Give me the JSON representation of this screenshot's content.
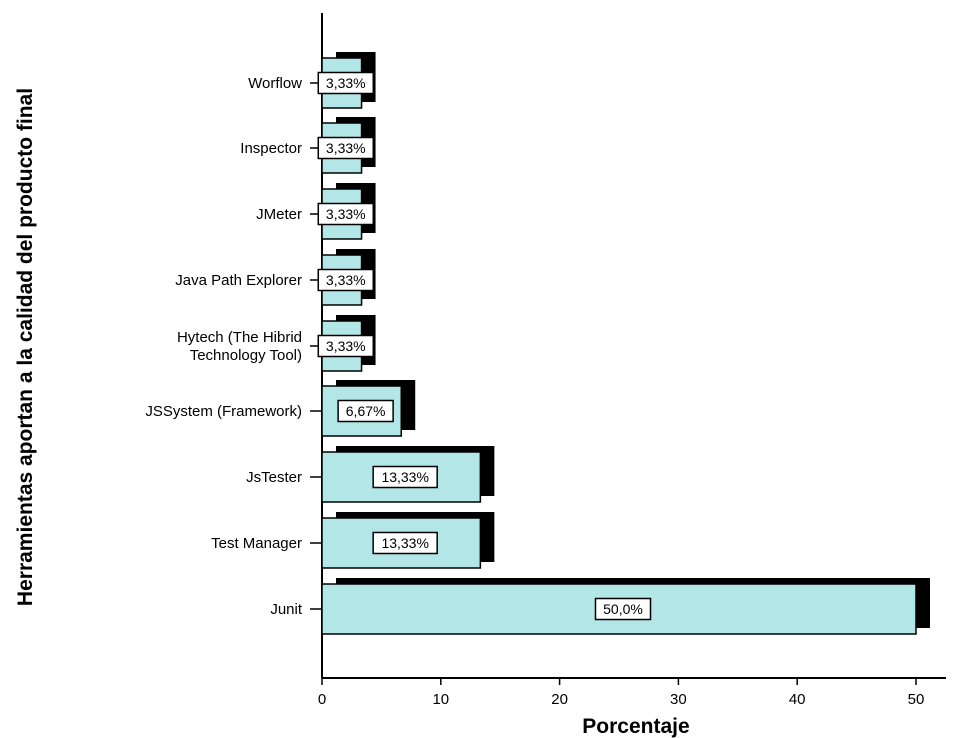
{
  "chart_data": {
    "type": "bar",
    "orientation": "horizontal",
    "ylabel": "Herramientas aportan a la calidad del producto final",
    "xlabel": "Porcentaje",
    "xlim": [
      0,
      53
    ],
    "xticks": [
      "0",
      "10",
      "20",
      "30",
      "40",
      "50"
    ],
    "grid": false,
    "categories": [
      "Worflow",
      "Inspector",
      "JMeter",
      "Java Path Explorer",
      "Hytech (The Hibrid\nTechnology Tool)",
      "JSSystem (Framework)",
      "JsTester",
      "Test Manager",
      "Junit"
    ],
    "values": [
      3.33,
      3.33,
      3.33,
      3.33,
      3.33,
      6.67,
      13.33,
      13.33,
      50.0
    ],
    "data_labels": [
      "3,33%",
      "3,33%",
      "3,33%",
      "3,33%",
      "3,33%",
      "6,67%",
      "13,33%",
      "13,33%",
      "50,0%"
    ],
    "colors": {
      "bar_fill": "#b3e6e6",
      "bar_shadow": "#000000",
      "axis": "#000000"
    }
  }
}
